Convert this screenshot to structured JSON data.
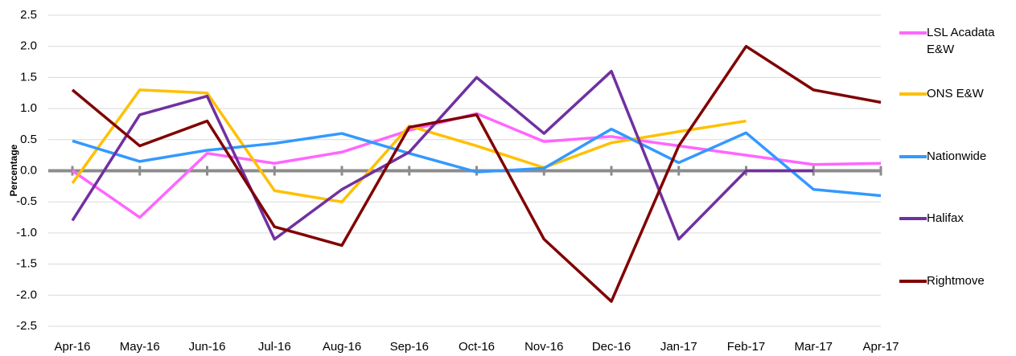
{
  "chart_data": {
    "type": "line",
    "y_label": "Percentage",
    "categories": [
      "Apr-16",
      "May-16",
      "Jun-16",
      "Jul-16",
      "Aug-16",
      "Sep-16",
      "Oct-16",
      "Nov-16",
      "Dec-16",
      "Jan-17",
      "Feb-17",
      "Mar-17",
      "Apr-17"
    ],
    "series": [
      {
        "name": "LSL Acadata E&W",
        "color": "#ff66ff",
        "values": [
          0.0,
          -0.75,
          0.28,
          0.12,
          0.3,
          0.65,
          0.92,
          0.47,
          0.55,
          0.4,
          0.25,
          0.1,
          0.12
        ]
      },
      {
        "name": "ONS E&W",
        "color": "#ffc000",
        "values": [
          -0.2,
          1.3,
          1.25,
          -0.32,
          -0.5,
          0.72,
          0.4,
          0.05,
          0.45,
          0.63,
          0.8,
          null,
          null
        ]
      },
      {
        "name": "Nationwide",
        "color": "#3399ff",
        "values": [
          0.48,
          0.15,
          0.33,
          0.44,
          0.6,
          0.28,
          -0.02,
          0.04,
          0.67,
          0.13,
          0.61,
          -0.3,
          -0.4
        ]
      },
      {
        "name": "Halifax",
        "color": "#7030a0",
        "values": [
          -0.8,
          0.9,
          1.2,
          -1.1,
          -0.3,
          0.3,
          1.5,
          0.6,
          1.6,
          -1.1,
          0.0,
          0.0,
          null
        ]
      },
      {
        "name": "Rightmove",
        "color": "#800000",
        "values": [
          1.3,
          0.4,
          0.8,
          -0.9,
          -1.2,
          0.7,
          0.9,
          -1.1,
          -2.1,
          0.4,
          2.0,
          1.3,
          1.1
        ]
      }
    ],
    "ylim": [
      -2.5,
      2.5
    ],
    "yticks": [
      2.5,
      {
        "value": 2,
        "label": "2.0"
      },
      1.5,
      {
        "value": 1,
        "label": "1.0"
      },
      0.5,
      {
        "value": 0,
        "label": "0.0"
      },
      -0.5,
      {
        "value": -1,
        "label": "-1.0"
      },
      -1.5,
      {
        "value": -2,
        "label": "-2.0"
      },
      -2.5
    ],
    "grid": true,
    "legend": "right"
  }
}
